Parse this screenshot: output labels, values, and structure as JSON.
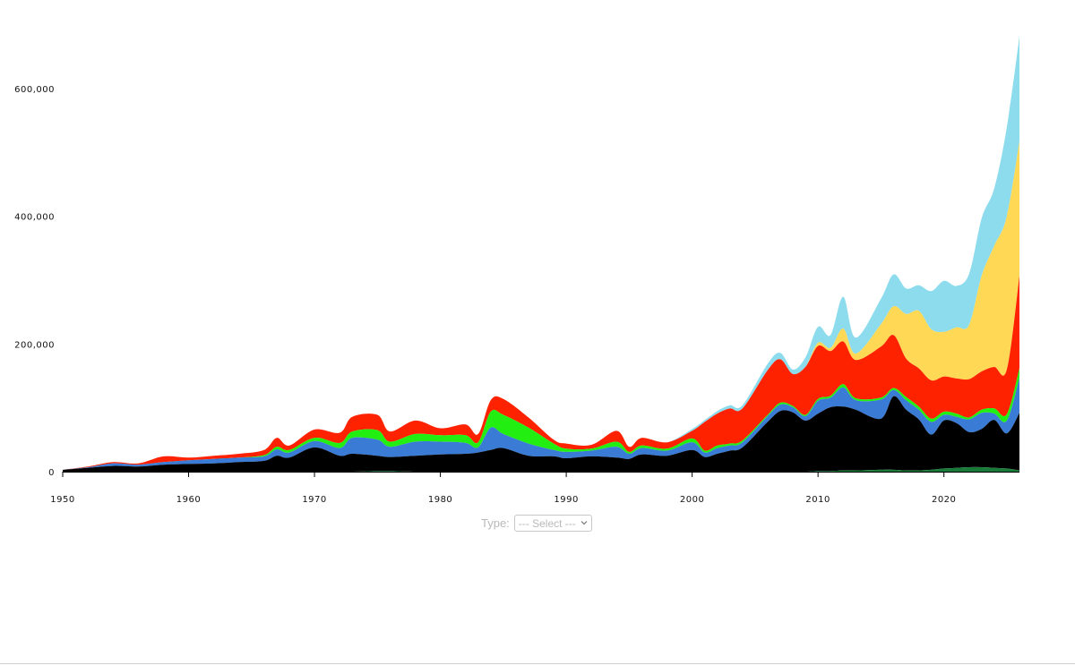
{
  "chart_data": {
    "type": "area",
    "stacked": true,
    "title": "",
    "xlabel": "",
    "ylabel": "",
    "xlim": [
      1950,
      2026
    ],
    "ylim": [
      0,
      680000
    ],
    "y_ticks": [
      0,
      200000,
      400000,
      600000
    ],
    "y_tick_labels": [
      "0",
      "200,000",
      "400,000",
      "600,000"
    ],
    "x_ticks": [
      1950,
      1960,
      1970,
      1980,
      1990,
      2000,
      2010,
      2020
    ],
    "x_tick_labels": [
      "1950",
      "1960",
      "1970",
      "1980",
      "1990",
      "2000",
      "2010",
      "2020"
    ],
    "grid": false,
    "legend": "none",
    "x": [
      1950,
      1952,
      1954,
      1956,
      1958,
      1960,
      1962,
      1964,
      1966,
      1967,
      1968,
      1970,
      1972,
      1973,
      1975,
      1976,
      1978,
      1980,
      1982,
      1983,
      1984,
      1985,
      1987,
      1989,
      1990,
      1992,
      1994,
      1995,
      1996,
      1998,
      2000,
      2001,
      2002,
      2003,
      2004,
      2006,
      2007,
      2008,
      2009,
      2010,
      2011,
      2012,
      2013,
      2015,
      2016,
      2017,
      2018,
      2019,
      2020,
      2021,
      2022,
      2023,
      2024,
      2025,
      2026
    ],
    "series": [
      {
        "color": "#1a7a3a",
        "values": [
          0,
          0,
          0,
          0,
          0,
          0,
          0,
          0,
          0,
          0,
          0,
          0,
          0,
          0,
          1000,
          1000,
          0,
          0,
          0,
          0,
          0,
          0,
          0,
          0,
          0,
          0,
          0,
          0,
          0,
          0,
          0,
          0,
          0,
          0,
          0,
          0,
          0,
          0,
          0,
          1000,
          1000,
          2000,
          2000,
          3000,
          3000,
          2000,
          2000,
          3000,
          5000,
          6000,
          7000,
          7000,
          6000,
          5000,
          2000
        ]
      },
      {
        "color": "#000000",
        "values": [
          3000,
          6000,
          9000,
          8000,
          11000,
          12000,
          13000,
          15000,
          17000,
          25000,
          22000,
          38000,
          25000,
          28000,
          24000,
          22000,
          25000,
          27000,
          28000,
          30000,
          34000,
          37000,
          25000,
          24000,
          21000,
          24000,
          22000,
          20000,
          27000,
          25000,
          34000,
          23000,
          28000,
          33000,
          38000,
          78000,
          95000,
          93000,
          80000,
          90000,
          100000,
          100000,
          95000,
          80000,
          115000,
          95000,
          80000,
          55000,
          75000,
          70000,
          55000,
          60000,
          75000,
          55000,
          90000
        ]
      },
      {
        "color": "#3a7bd5",
        "values": [
          0,
          1000,
          4000,
          3000,
          4000,
          6000,
          7000,
          7000,
          7000,
          10000,
          8000,
          10000,
          12000,
          25000,
          25000,
          16000,
          22000,
          20000,
          17000,
          8000,
          35000,
          22000,
          19000,
          10000,
          10000,
          9000,
          17000,
          8000,
          10000,
          8000,
          12000,
          7000,
          9000,
          8000,
          8000,
          9000,
          10000,
          8000,
          7000,
          20000,
          15000,
          30000,
          15000,
          30000,
          10000,
          15000,
          15000,
          20000,
          9000,
          10000,
          20000,
          25000,
          10000,
          20000,
          55000
        ]
      },
      {
        "color": "#22ee11",
        "values": [
          0,
          0,
          0,
          0,
          0,
          0,
          0,
          0,
          2000,
          4000,
          4000,
          5000,
          8000,
          10000,
          15000,
          8000,
          12000,
          10000,
          12000,
          8000,
          25000,
          30000,
          25000,
          10000,
          5000,
          3000,
          8000,
          3000,
          4000,
          3000,
          6000,
          3000,
          4000,
          3000,
          3000,
          2000,
          3000,
          2000,
          2000,
          3000,
          3000,
          5000,
          3000,
          3000,
          3000,
          5000,
          5000,
          5000,
          5000,
          5000,
          3000,
          5000,
          8000,
          10000,
          15000
        ]
      },
      {
        "color": "#ff2200",
        "values": [
          0,
          1000,
          2000,
          2000,
          9000,
          4000,
          5000,
          6000,
          8000,
          14000,
          7000,
          13000,
          16000,
          23000,
          24000,
          16000,
          21000,
          11000,
          17000,
          13000,
          18000,
          25000,
          16000,
          6000,
          8000,
          6000,
          17000,
          8000,
          12000,
          10000,
          12000,
          45000,
          50000,
          55000,
          50000,
          70000,
          68000,
          50000,
          75000,
          83000,
          70000,
          67000,
          60000,
          80000,
          83000,
          60000,
          60000,
          60000,
          55000,
          55000,
          60000,
          60000,
          65000,
          70000,
          145000
        ]
      },
      {
        "color": "#ffd955",
        "values": [
          0,
          0,
          0,
          0,
          0,
          0,
          0,
          0,
          0,
          0,
          0,
          0,
          0,
          0,
          0,
          0,
          0,
          0,
          0,
          0,
          0,
          0,
          0,
          0,
          0,
          0,
          0,
          0,
          0,
          0,
          0,
          0,
          0,
          0,
          0,
          0,
          0,
          0,
          0,
          5000,
          5000,
          20000,
          10000,
          35000,
          45000,
          70000,
          90000,
          80000,
          70000,
          80000,
          85000,
          150000,
          190000,
          240000,
          210000
        ]
      },
      {
        "color": "#8ddcee",
        "values": [
          0,
          0,
          0,
          0,
          0,
          0,
          0,
          0,
          0,
          0,
          0,
          0,
          0,
          0,
          0,
          0,
          0,
          0,
          0,
          0,
          0,
          0,
          0,
          0,
          0,
          0,
          0,
          0,
          0,
          0,
          3000,
          3000,
          4000,
          5000,
          5000,
          10000,
          10000,
          7000,
          15000,
          25000,
          20000,
          50000,
          25000,
          40000,
          50000,
          40000,
          40000,
          60000,
          80000,
          65000,
          80000,
          90000,
          90000,
          140000,
          165000
        ]
      }
    ]
  },
  "controls": {
    "type_label": "Type:",
    "type_select_value": "--- Select ---"
  }
}
